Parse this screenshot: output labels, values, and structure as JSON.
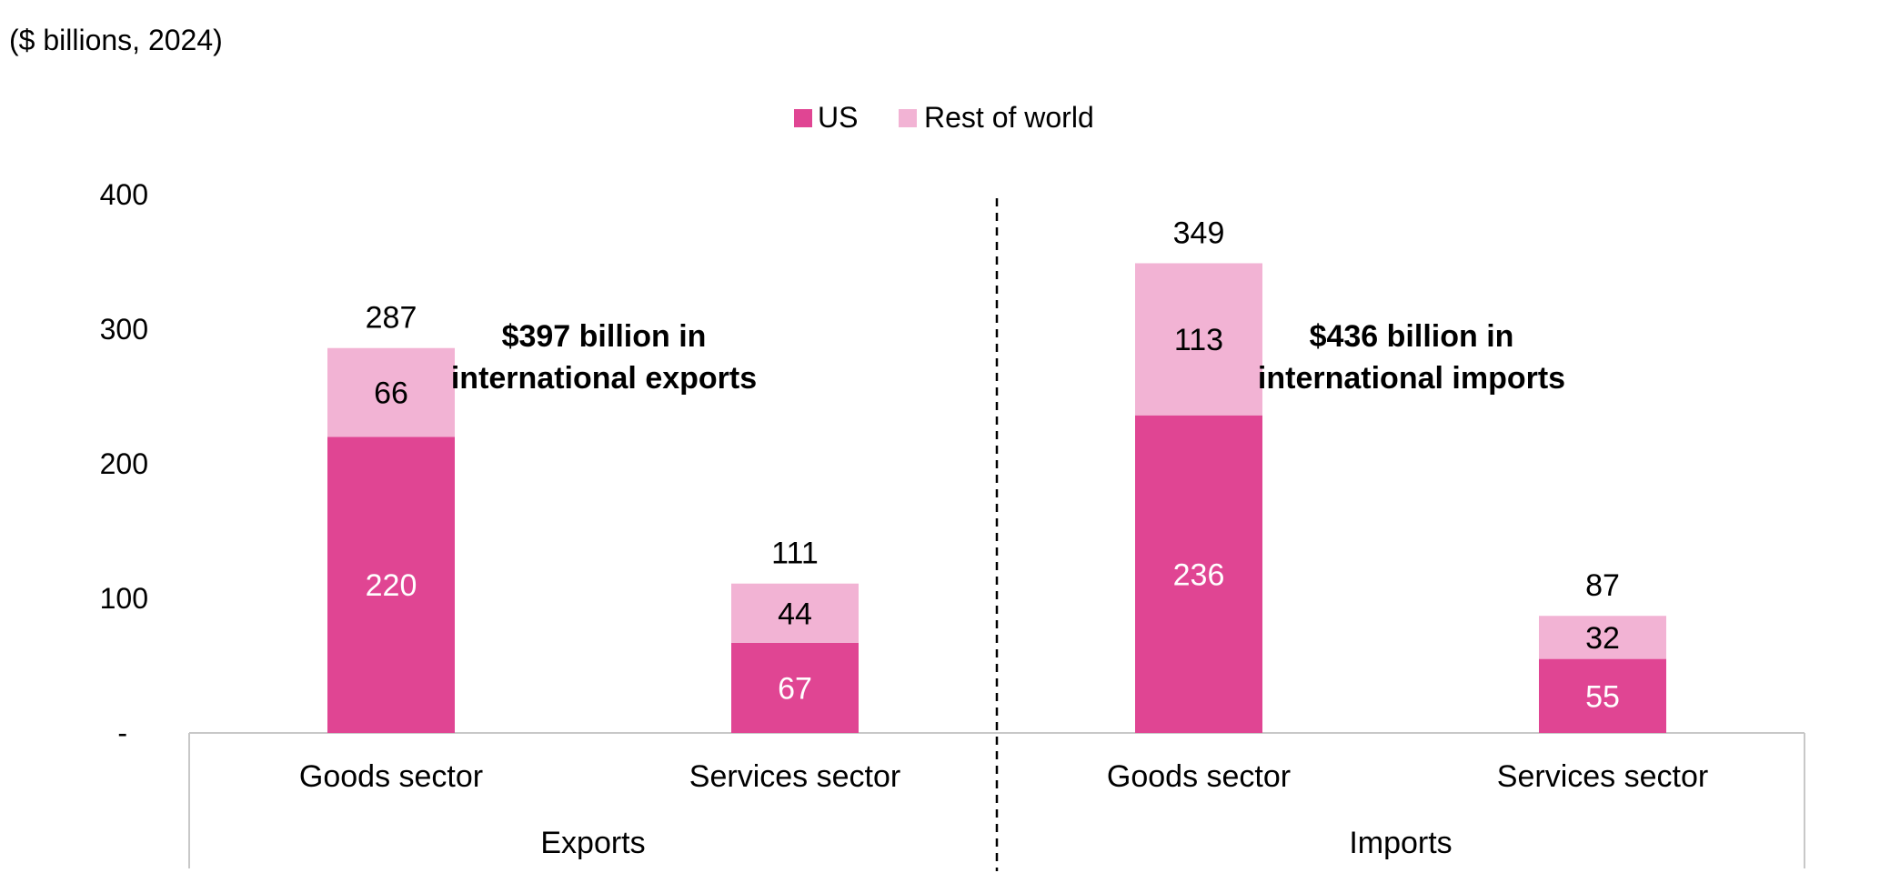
{
  "chart_data": {
    "type": "bar",
    "stacked": true,
    "unit_label": "($ billions, 2024)",
    "legend": {
      "position": "top-center",
      "items": [
        {
          "name": "US",
          "color": "#e04593"
        },
        {
          "name": "Rest of world",
          "color": "#f2b3d4"
        }
      ]
    },
    "y_axis": {
      "ylim": [
        0,
        400
      ],
      "ticks": [
        {
          "value": 0,
          "label": "-"
        },
        {
          "value": 100,
          "label": "100"
        },
        {
          "value": 200,
          "label": "200"
        },
        {
          "value": 300,
          "label": "300"
        },
        {
          "value": 400,
          "label": "400"
        }
      ]
    },
    "groups": [
      {
        "label": "Exports",
        "annotation": [
          "$397 billion in",
          "international exports"
        ],
        "categories": [
          {
            "label": "Goods sector",
            "us": 220,
            "rest_of_world": 66,
            "total": "287"
          },
          {
            "label": "Services sector",
            "us": 67,
            "rest_of_world": 44,
            "total": "111"
          }
        ]
      },
      {
        "label": "Imports",
        "annotation": [
          "$436 billion in",
          "international imports"
        ],
        "categories": [
          {
            "label": "Goods sector",
            "us": 236,
            "rest_of_world": 113,
            "total": "349"
          },
          {
            "label": "Services sector",
            "us": 55,
            "rest_of_world": 32,
            "total": "87"
          }
        ]
      }
    ]
  }
}
